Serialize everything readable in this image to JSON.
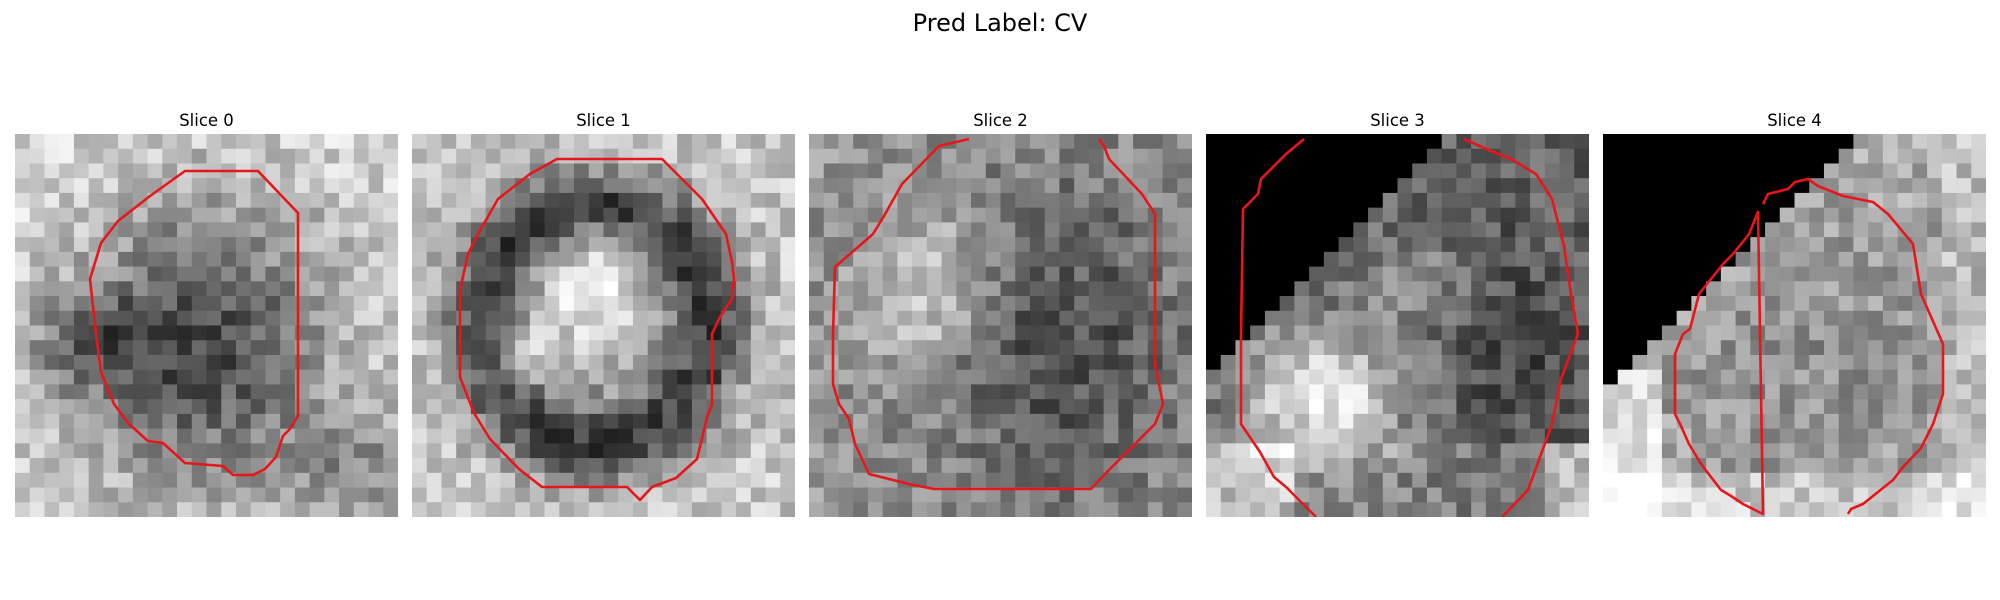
{
  "figure": {
    "title": "Pred Label: CV",
    "contour_color": "#e8161b"
  },
  "panels": [
    {
      "title": "Slice 0"
    },
    {
      "title": "Slice 1"
    },
    {
      "title": "Slice 2"
    },
    {
      "title": "Slice 3"
    },
    {
      "title": "Slice 4"
    }
  ]
}
